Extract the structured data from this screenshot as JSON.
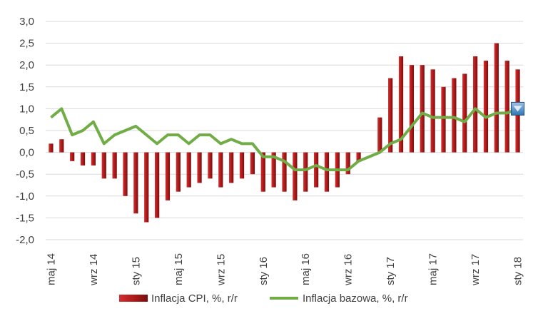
{
  "chart_data": {
    "type": "bar+line",
    "title": "",
    "xlabel": "",
    "ylabel": "",
    "ylim": [
      -2.0,
      3.0
    ],
    "y_ticks": [
      "3,0",
      "2,5",
      "2,0",
      "1,5",
      "1,0",
      "0,5",
      "0,0",
      "-0,5",
      "-1,0",
      "-1,5",
      "-2,0"
    ],
    "grid": true,
    "legend_position": "bottom",
    "categories": [
      "maj 14",
      "cze 14",
      "lip 14",
      "sie 14",
      "wrz 14",
      "paź 14",
      "lis 14",
      "gru 14",
      "sty 15",
      "lut 15",
      "mar 15",
      "kwi 15",
      "maj 15",
      "cze 15",
      "lip 15",
      "sie 15",
      "wrz 15",
      "paź 15",
      "lis 15",
      "gru 15",
      "sty 16",
      "lut 16",
      "mar 16",
      "kwi 16",
      "maj 16",
      "cze 16",
      "lip 16",
      "sie 16",
      "wrz 16",
      "paź 16",
      "lis 16",
      "gru 16",
      "sty 17",
      "lut 17",
      "mar 17",
      "kwi 17",
      "maj 17",
      "cze 17",
      "lip 17",
      "sie 17",
      "wrz 17",
      "paź 17",
      "lis 17",
      "gru 17",
      "sty 18"
    ],
    "x_tick_labels": [
      {
        "index": 0,
        "label": "maj 14"
      },
      {
        "index": 4,
        "label": "wrz 14"
      },
      {
        "index": 8,
        "label": "sty 15"
      },
      {
        "index": 12,
        "label": "maj 15"
      },
      {
        "index": 16,
        "label": "wrz 15"
      },
      {
        "index": 20,
        "label": "sty 16"
      },
      {
        "index": 24,
        "label": "maj 16"
      },
      {
        "index": 28,
        "label": "wrz 16"
      },
      {
        "index": 32,
        "label": "sty 17"
      },
      {
        "index": 36,
        "label": "maj 17"
      },
      {
        "index": 40,
        "label": "wrz 17"
      },
      {
        "index": 44,
        "label": "sty 18"
      }
    ],
    "series": [
      {
        "name": "Inflacja CPI, %, r/r",
        "type": "bar",
        "color": "#b01a1a",
        "values": [
          0.2,
          0.3,
          -0.2,
          -0.3,
          -0.3,
          -0.6,
          -0.6,
          -1.0,
          -1.4,
          -1.6,
          -1.5,
          -1.1,
          -0.9,
          -0.8,
          -0.7,
          -0.6,
          -0.8,
          -0.7,
          -0.6,
          -0.5,
          -0.9,
          -0.8,
          -0.9,
          -1.1,
          -0.9,
          -0.8,
          -0.9,
          -0.8,
          -0.5,
          -0.2,
          0.0,
          0.8,
          1.7,
          2.2,
          2.0,
          2.0,
          1.9,
          1.5,
          1.7,
          1.8,
          2.2,
          2.1,
          2.5,
          2.1,
          1.9
        ]
      },
      {
        "name": "Inflacja bazowa, %, r/r",
        "type": "line",
        "color": "#70ad47",
        "values": [
          0.8,
          1.0,
          0.4,
          0.5,
          0.7,
          0.2,
          0.4,
          0.5,
          0.6,
          0.4,
          0.2,
          0.4,
          0.4,
          0.2,
          0.4,
          0.4,
          0.2,
          0.3,
          0.2,
          0.2,
          -0.1,
          -0.1,
          -0.2,
          -0.4,
          -0.4,
          -0.3,
          -0.4,
          -0.4,
          -0.4,
          -0.2,
          -0.1,
          0.0,
          0.2,
          0.3,
          0.6,
          0.9,
          0.8,
          0.8,
          0.8,
          0.7,
          1.0,
          0.8,
          0.9,
          0.9,
          1.0
        ]
      }
    ],
    "end_marker": {
      "series": "Inflacja bazowa, %, r/r",
      "index": 44,
      "color": "#2e75b6"
    }
  }
}
